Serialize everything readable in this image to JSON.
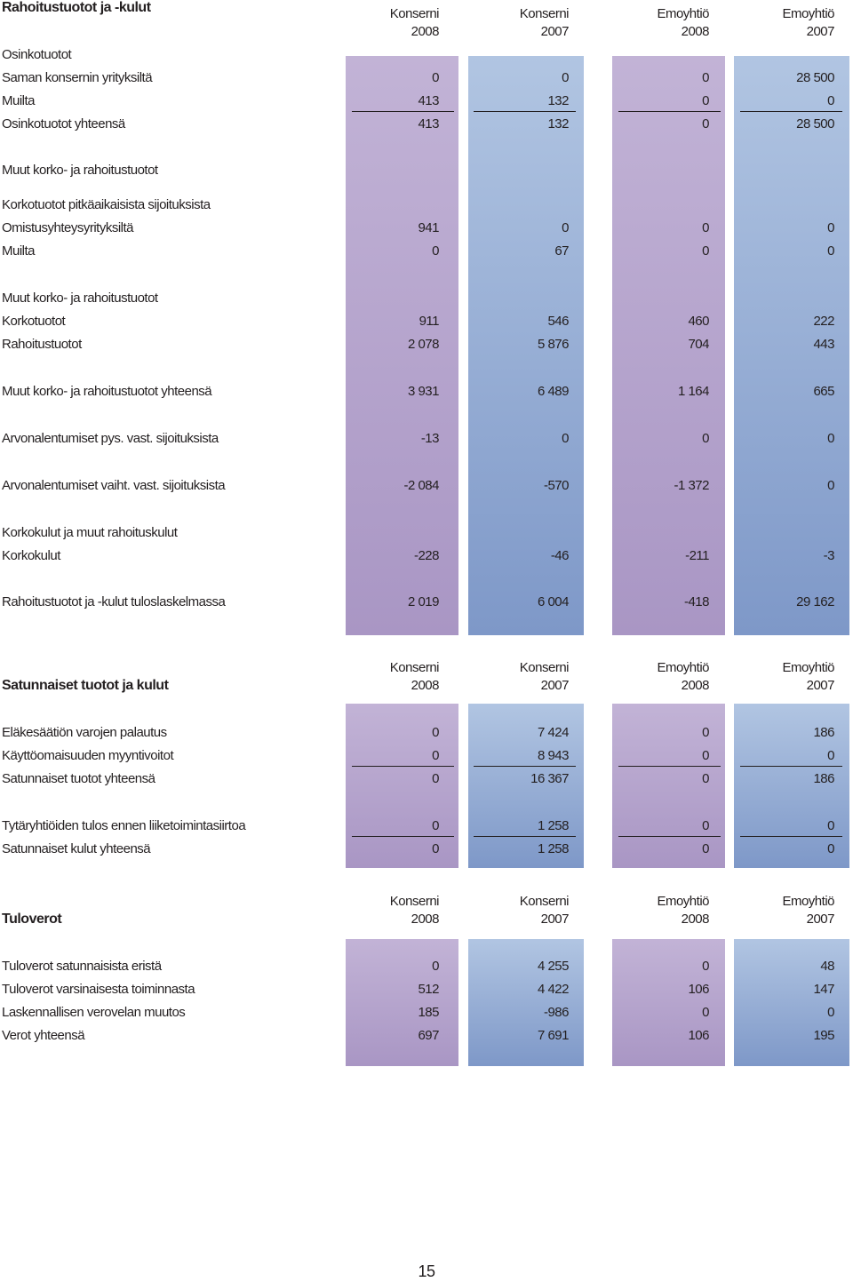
{
  "colors": {
    "purple_band": "#b7a6cf",
    "blue_band": "#98afd6",
    "text": "#231f20"
  },
  "section1": {
    "title": "Rahoitustuotot ja -kulut",
    "headers": [
      {
        "entity": "Konserni",
        "year": "2008"
      },
      {
        "entity": "Konserni",
        "year": "2007"
      },
      {
        "entity": "Emoyhtiö",
        "year": "2008"
      },
      {
        "entity": "Emoyhtiö",
        "year": "2007"
      }
    ],
    "rows": [
      {
        "label": "Osinkotuotot",
        "values": []
      },
      {
        "label": "Saman konsernin yrityksiltä",
        "values": [
          "0",
          "0",
          "0",
          "28 500"
        ]
      },
      {
        "label": "Muilta",
        "values": [
          "413",
          "132",
          "0",
          "0"
        ]
      },
      {
        "label": "Osinkotuotot yhteensä",
        "values": [
          "413",
          "132",
          "0",
          "28 500"
        ]
      },
      {
        "label": "Muut korko- ja rahoitustuotot",
        "values": []
      },
      {
        "label": "Korkotuotot pitkäaikaisista sijoituksista",
        "values": []
      },
      {
        "label": "Omistusyhteysyrityksiltä",
        "values": [
          "941",
          "0",
          "0",
          "0"
        ]
      },
      {
        "label": "Muilta",
        "values": [
          "0",
          "67",
          "0",
          "0"
        ]
      },
      {
        "label": "Muut korko- ja rahoitustuotot",
        "values": []
      },
      {
        "label": "Korkotuotot",
        "values": [
          "911",
          "546",
          "460",
          "222"
        ]
      },
      {
        "label": "Rahoitustuotot",
        "values": [
          "2 078",
          "5 876",
          "704",
          "443"
        ]
      },
      {
        "label": "Muut korko- ja rahoitustuotot yhteensä",
        "values": [
          "3 931",
          "6 489",
          "1 164",
          "665"
        ]
      },
      {
        "label": "Arvonalentumiset pys. vast. sijoituksista",
        "values": [
          "-13",
          "0",
          "0",
          "0"
        ]
      },
      {
        "label": "Arvonalentumiset vaiht. vast. sijoituksista",
        "values": [
          "-2 084",
          "-570",
          "-1 372",
          "0"
        ]
      },
      {
        "label": "Korkokulut ja muut rahoituskulut",
        "values": []
      },
      {
        "label": "Korkokulut",
        "values": [
          "-228",
          "-46",
          "-211",
          "-3"
        ]
      },
      {
        "label": "Rahoitustuotot ja -kulut tuloslaskelmassa",
        "values": [
          "2 019",
          "6 004",
          "-418",
          "29 162"
        ]
      }
    ]
  },
  "section2": {
    "title": "Satunnaiset tuotot ja kulut",
    "headers": [
      {
        "entity": "Konserni",
        "year": "2008"
      },
      {
        "entity": "Konserni",
        "year": "2007"
      },
      {
        "entity": "Emoyhtiö",
        "year": "2008"
      },
      {
        "entity": "Emoyhtiö",
        "year": "2007"
      }
    ],
    "rows": [
      {
        "label": "Eläkesäätiön varojen palautus",
        "values": [
          "0",
          "7 424",
          "0",
          "186"
        ]
      },
      {
        "label": "Käyttöomaisuuden myyntivoitot",
        "values": [
          "0",
          "8 943",
          "0",
          "0"
        ]
      },
      {
        "label": "Satunnaiset tuotot yhteensä",
        "values": [
          "0",
          "16 367",
          "0",
          "186"
        ]
      },
      {
        "label": "Tytäryhtiöiden tulos ennen liiketoimintasiirtoa",
        "values": [
          "0",
          "1 258",
          "0",
          "0"
        ]
      },
      {
        "label": "Satunnaiset kulut yhteensä",
        "values": [
          "0",
          "1 258",
          "0",
          "0"
        ]
      }
    ]
  },
  "section3": {
    "title": "Tuloverot",
    "headers": [
      {
        "entity": "Konserni",
        "year": "2008"
      },
      {
        "entity": "Konserni",
        "year": "2007"
      },
      {
        "entity": "Emoyhtiö",
        "year": "2008"
      },
      {
        "entity": "Emoyhtiö",
        "year": "2007"
      }
    ],
    "rows": [
      {
        "label": "Tuloverot satunnaisista eristä",
        "values": [
          "0",
          "4 255",
          "0",
          "48"
        ]
      },
      {
        "label": "Tuloverot varsinaisesta toiminnasta",
        "values": [
          "512",
          "4 422",
          "106",
          "147"
        ]
      },
      {
        "label": "Laskennallisen verovelan muutos",
        "values": [
          "185",
          "-986",
          "0",
          "0"
        ]
      },
      {
        "label": "Verot yhteensä",
        "values": [
          "697",
          "7 691",
          "106",
          "195"
        ]
      }
    ]
  },
  "page_number": "15"
}
